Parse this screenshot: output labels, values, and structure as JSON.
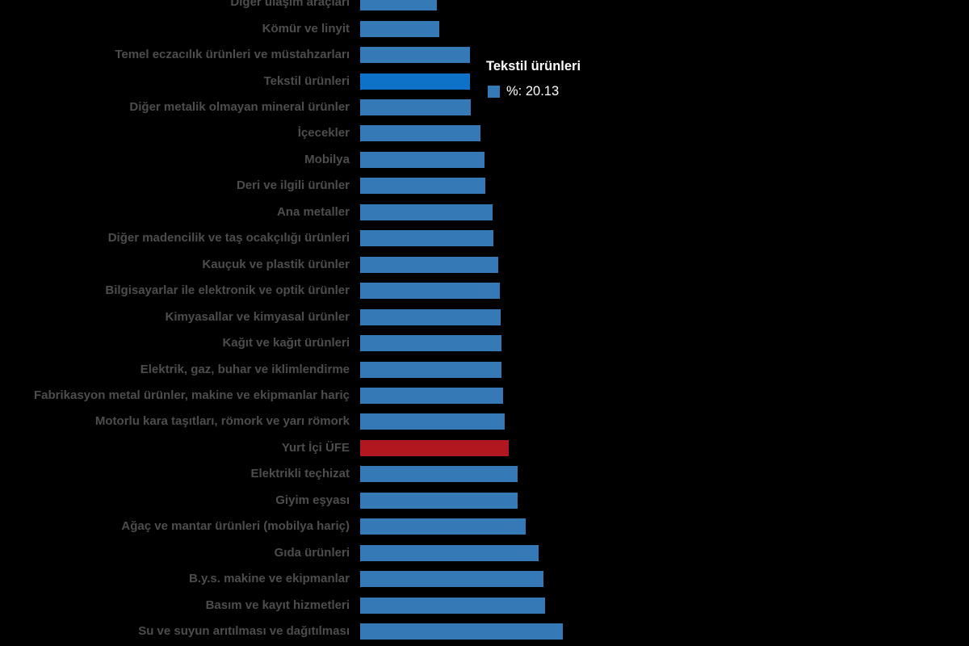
{
  "page": {
    "background_color": "#000000",
    "label_color": "#4d4d4d"
  },
  "tooltip": {
    "title": "Tekstil ürünleri",
    "marker_color": "#3579b6",
    "text": "%: 20.13"
  },
  "chart_data": {
    "type": "bar",
    "orientation": "horizontal",
    "unit": "%",
    "title": "",
    "xlabel": "",
    "ylabel": "",
    "axes_visible": false,
    "grid": false,
    "legend_position": "none",
    "xlim": [
      0,
      40
    ],
    "sort_order": "ascending-top-to-bottom",
    "highlight_category": "Tekstil ürünleri",
    "special_category": "Yurt İçi ÜFE",
    "colors": {
      "bar": "#3579b6",
      "highlight": "#0d72c8",
      "special": "#b1171f"
    },
    "categories": [
      "Diğer ulaşım araçları",
      "Kömür ve linyit",
      "Temel eczacılık ürünleri ve müstahzarları",
      "Tekstil ürünleri",
      "Diğer metalik olmayan mineral ürünler",
      "İçecekler",
      "Mobilya",
      "Deri ve ilgili ürünler",
      "Ana metaller",
      "Diğer madencilik ve taş ocakçılığı ürünleri",
      "Kauçuk ve plastik ürünler",
      "Bilgisayarlar ile elektronik ve optik ürünler",
      "Kimyasallar ve kimyasal ürünler",
      "Kağıt ve kağıt ürünleri",
      "Elektrik, gaz, buhar ve iklimlendirme",
      "Fabrikasyon metal ürünler, makine ve ekipmanlar hariç",
      "Motorlu kara taşıtları, römork ve yarı römork",
      "Yurt İçi ÜFE",
      "Elektrikli teçhizat",
      "Giyim eşyası",
      "Ağaç ve mantar ürünleri (mobilya hariç)",
      "Gıda ürünleri",
      "B.y.s. makine ve ekipmanlar",
      "Basım ve kayıt hizmetleri",
      "Su ve suyun arıtılması ve dağıtılması"
    ],
    "values": [
      14.05,
      14.5,
      20.06,
      20.13,
      20.35,
      22.05,
      22.79,
      22.94,
      24.27,
      24.42,
      25.31,
      25.61,
      25.75,
      25.9,
      25.95,
      26.2,
      26.49,
      27.2,
      28.86,
      28.9,
      30.34,
      32.71,
      33.6,
      33.89,
      37.15
    ]
  }
}
